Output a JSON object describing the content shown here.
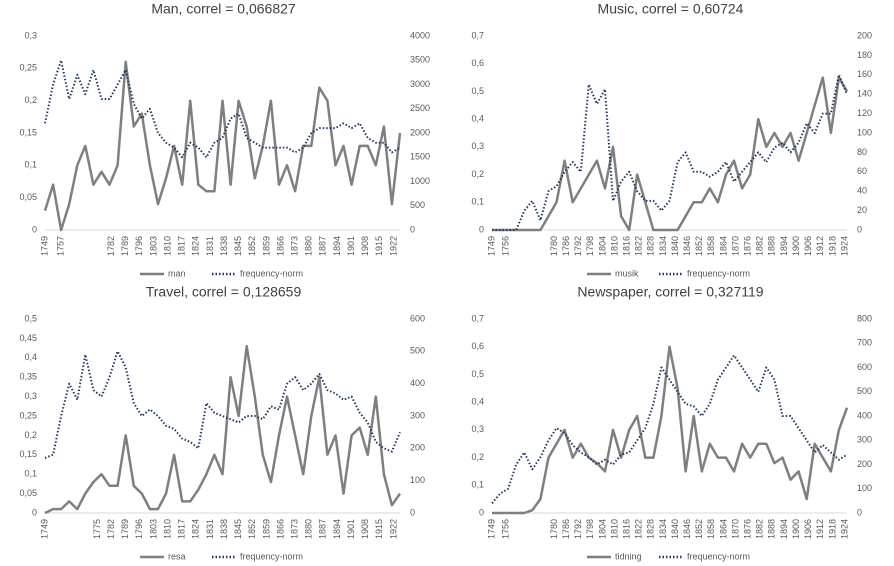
{
  "chart_data": [
    {
      "type": "line",
      "title": "Man, correl = 0,066827",
      "x": [
        1749,
        1753,
        1757,
        1761,
        1765,
        1769,
        1773,
        1777,
        1781,
        1785,
        1789,
        1793,
        1797,
        1801,
        1805,
        1809,
        1813,
        1817,
        1821,
        1825,
        1829,
        1833,
        1837,
        1841,
        1845,
        1849,
        1853,
        1857,
        1861,
        1865,
        1869,
        1873,
        1877,
        1881,
        1885,
        1889,
        1893,
        1897,
        1901,
        1905,
        1909,
        1913,
        1917,
        1921,
        1925
      ],
      "xlim": [
        1749,
        1925
      ],
      "xticks": [
        1749,
        1757,
        1782,
        1789,
        1796,
        1803,
        1810,
        1817,
        1824,
        1831,
        1838,
        1845,
        1852,
        1859,
        1866,
        1873,
        1880,
        1887,
        1894,
        1901,
        1908,
        1915,
        1922
      ],
      "ylim": [
        0,
        0.3
      ],
      "yticks": [
        0,
        {
          "value": 0.05,
          "label": "0,05"
        },
        {
          "value": 0.1,
          "label": "0,1"
        },
        {
          "value": 0.15,
          "label": "0,15"
        },
        {
          "value": 0.2,
          "label": "0,2"
        },
        {
          "value": 0.25,
          "label": "0,25"
        },
        {
          "value": 0.3,
          "label": "0,3"
        }
      ],
      "y2lim": [
        0,
        4000
      ],
      "y2ticks": [
        0,
        500,
        1000,
        1500,
        2000,
        2500,
        3000,
        3500,
        4000
      ],
      "grid": false,
      "series": [
        {
          "name": "man",
          "color": "#7f7f7f",
          "values": [
            0.03,
            0.07,
            0.0,
            0.04,
            0.1,
            0.13,
            0.07,
            0.09,
            0.07,
            0.1,
            0.26,
            0.16,
            0.18,
            0.1,
            0.04,
            0.08,
            0.13,
            0.07,
            0.2,
            0.07,
            0.06,
            0.06,
            0.2,
            0.07,
            0.2,
            0.16,
            0.08,
            0.13,
            0.2,
            0.07,
            0.1,
            0.06,
            0.13,
            0.13,
            0.22,
            0.2,
            0.1,
            0.13,
            0.07,
            0.13,
            0.13,
            0.1,
            0.16,
            0.04,
            0.15
          ]
        },
        {
          "name": "frequency-norm",
          "color": "#1f3864",
          "axis": "y2",
          "values": [
            2200,
            3000,
            3500,
            2700,
            3200,
            2800,
            3300,
            2700,
            2700,
            3000,
            3300,
            2600,
            2300,
            2500,
            2000,
            1800,
            1700,
            1500,
            1800,
            1700,
            1500,
            1800,
            1900,
            2300,
            2400,
            1900,
            1800,
            1700,
            1700,
            1700,
            1700,
            1600,
            1700,
            2000,
            2100,
            2100,
            2100,
            2200,
            2100,
            2200,
            1900,
            1800,
            1800,
            1600,
            1700
          ]
        }
      ]
    },
    {
      "type": "line",
      "title": "Music, correl = 0,60724",
      "x": [
        1749,
        1753,
        1757,
        1761,
        1765,
        1769,
        1773,
        1777,
        1781,
        1785,
        1789,
        1793,
        1797,
        1801,
        1805,
        1809,
        1813,
        1817,
        1821,
        1825,
        1829,
        1833,
        1837,
        1841,
        1845,
        1849,
        1853,
        1857,
        1861,
        1865,
        1869,
        1873,
        1877,
        1881,
        1885,
        1889,
        1893,
        1897,
        1901,
        1905,
        1909,
        1913,
        1917,
        1921,
        1925
      ],
      "xlim": [
        1749,
        1925
      ],
      "xticks": [
        1749,
        1756,
        1780,
        1786,
        1792,
        1798,
        1804,
        1810,
        1816,
        1822,
        1828,
        1834,
        1840,
        1846,
        1852,
        1858,
        1864,
        1870,
        1876,
        1882,
        1888,
        1894,
        1900,
        1906,
        1912,
        1918,
        1924
      ],
      "ylim": [
        0,
        0.7
      ],
      "yticks": [
        0,
        {
          "value": 0.1,
          "label": "0,1"
        },
        {
          "value": 0.2,
          "label": "0,2"
        },
        {
          "value": 0.3,
          "label": "0,3"
        },
        {
          "value": 0.4,
          "label": "0,4"
        },
        {
          "value": 0.5,
          "label": "0,5"
        },
        {
          "value": 0.6,
          "label": "0,6"
        },
        {
          "value": 0.7,
          "label": "0,7"
        }
      ],
      "y2lim": [
        0,
        200
      ],
      "y2ticks": [
        0,
        20,
        40,
        60,
        80,
        100,
        120,
        140,
        160,
        180,
        200
      ],
      "grid": false,
      "series": [
        {
          "name": "musik",
          "color": "#7f7f7f",
          "values": [
            0,
            0,
            0,
            0,
            0,
            0,
            0,
            0.05,
            0.1,
            0.25,
            0.1,
            0.15,
            0.2,
            0.25,
            0.15,
            0.3,
            0.05,
            0,
            0.2,
            0.1,
            0,
            0,
            0,
            0,
            0.05,
            0.1,
            0.1,
            0.15,
            0.1,
            0.2,
            0.25,
            0.15,
            0.2,
            0.4,
            0.3,
            0.35,
            0.3,
            0.35,
            0.25,
            0.35,
            0.45,
            0.55,
            0.35,
            0.55,
            0.5
          ]
        },
        {
          "name": "frequency-norm",
          "color": "#1f3864",
          "axis": "y2",
          "values": [
            0,
            0,
            0,
            0,
            20,
            30,
            10,
            40,
            45,
            60,
            70,
            60,
            150,
            130,
            145,
            30,
            50,
            60,
            40,
            30,
            30,
            20,
            30,
            70,
            80,
            60,
            60,
            55,
            60,
            70,
            50,
            60,
            70,
            80,
            70,
            85,
            90,
            80,
            90,
            110,
            100,
            120,
            120,
            160,
            140
          ]
        }
      ]
    },
    {
      "type": "line",
      "title": "Travel, correl = 0,128659",
      "x": [
        1749,
        1753,
        1757,
        1761,
        1765,
        1769,
        1773,
        1777,
        1781,
        1785,
        1789,
        1793,
        1797,
        1801,
        1805,
        1809,
        1813,
        1817,
        1821,
        1825,
        1829,
        1833,
        1837,
        1841,
        1845,
        1849,
        1853,
        1857,
        1861,
        1865,
        1869,
        1873,
        1877,
        1881,
        1885,
        1889,
        1893,
        1897,
        1901,
        1905,
        1909,
        1913,
        1917,
        1921,
        1925
      ],
      "xlim": [
        1749,
        1925
      ],
      "xticks": [
        1749,
        1775,
        1782,
        1789,
        1796,
        1803,
        1810,
        1817,
        1824,
        1831,
        1838,
        1845,
        1852,
        1859,
        1866,
        1873,
        1880,
        1887,
        1894,
        1901,
        1908,
        1915,
        1922
      ],
      "ylim": [
        0,
        0.5
      ],
      "yticks": [
        0,
        {
          "value": 0.05,
          "label": "0,05"
        },
        {
          "value": 0.1,
          "label": "0,1"
        },
        {
          "value": 0.15,
          "label": "0,15"
        },
        {
          "value": 0.2,
          "label": "0,2"
        },
        {
          "value": 0.25,
          "label": "0,25"
        },
        {
          "value": 0.3,
          "label": "0,3"
        },
        {
          "value": 0.35,
          "label": "0,35"
        },
        {
          "value": 0.4,
          "label": "0,4"
        },
        {
          "value": 0.45,
          "label": "0,45"
        },
        {
          "value": 0.5,
          "label": "0,5"
        }
      ],
      "y2lim": [
        0,
        600
      ],
      "y2ticks": [
        0,
        100,
        200,
        300,
        400,
        500,
        600
      ],
      "grid": false,
      "series": [
        {
          "name": "resa",
          "color": "#7f7f7f",
          "values": [
            0,
            0.01,
            0.01,
            0.03,
            0.01,
            0.05,
            0.08,
            0.1,
            0.07,
            0.07,
            0.2,
            0.07,
            0.05,
            0.01,
            0.01,
            0.05,
            0.15,
            0.03,
            0.03,
            0.06,
            0.1,
            0.15,
            0.1,
            0.35,
            0.25,
            0.43,
            0.3,
            0.15,
            0.08,
            0.2,
            0.3,
            0.2,
            0.1,
            0.25,
            0.35,
            0.15,
            0.2,
            0.05,
            0.2,
            0.22,
            0.15,
            0.3,
            0.1,
            0.02,
            0.05
          ]
        },
        {
          "name": "frequency-norm",
          "color": "#1f3864",
          "axis": "y2",
          "values": [
            170,
            180,
            300,
            400,
            350,
            490,
            380,
            360,
            420,
            500,
            450,
            340,
            300,
            320,
            300,
            270,
            260,
            230,
            220,
            200,
            340,
            310,
            300,
            290,
            280,
            300,
            300,
            290,
            330,
            320,
            400,
            420,
            380,
            400,
            430,
            380,
            370,
            350,
            360,
            310,
            280,
            220,
            200,
            190,
            250
          ]
        }
      ]
    },
    {
      "type": "line",
      "title": "Newspaper, correl = 0,327119",
      "x": [
        1749,
        1753,
        1757,
        1761,
        1765,
        1769,
        1773,
        1777,
        1781,
        1785,
        1789,
        1793,
        1797,
        1801,
        1805,
        1809,
        1813,
        1817,
        1821,
        1825,
        1829,
        1833,
        1837,
        1841,
        1845,
        1849,
        1853,
        1857,
        1861,
        1865,
        1869,
        1873,
        1877,
        1881,
        1885,
        1889,
        1893,
        1897,
        1901,
        1905,
        1909,
        1913,
        1917,
        1921,
        1925
      ],
      "xlim": [
        1749,
        1925
      ],
      "xticks": [
        1749,
        1756,
        1780,
        1786,
        1792,
        1798,
        1804,
        1810,
        1816,
        1822,
        1828,
        1834,
        1840,
        1846,
        1852,
        1858,
        1864,
        1870,
        1876,
        1882,
        1888,
        1894,
        1900,
        1906,
        1912,
        1918,
        1924
      ],
      "ylim": [
        0,
        0.7
      ],
      "yticks": [
        0,
        {
          "value": 0.1,
          "label": "0,1"
        },
        {
          "value": 0.2,
          "label": "0,2"
        },
        {
          "value": 0.3,
          "label": "0,3"
        },
        {
          "value": 0.4,
          "label": "0,4"
        },
        {
          "value": 0.5,
          "label": "0,5"
        },
        {
          "value": 0.6,
          "label": "0,6"
        },
        {
          "value": 0.7,
          "label": "0,7"
        }
      ],
      "y2lim": [
        0,
        800
      ],
      "y2ticks": [
        0,
        100,
        200,
        300,
        400,
        500,
        600,
        700,
        800
      ],
      "grid": false,
      "series": [
        {
          "name": "tidning",
          "color": "#7f7f7f",
          "values": [
            0,
            0,
            0,
            0,
            0,
            0.01,
            0.05,
            0.2,
            0.25,
            0.3,
            0.2,
            0.25,
            0.2,
            0.18,
            0.15,
            0.3,
            0.2,
            0.3,
            0.35,
            0.2,
            0.2,
            0.35,
            0.6,
            0.45,
            0.15,
            0.35,
            0.15,
            0.25,
            0.2,
            0.2,
            0.15,
            0.25,
            0.2,
            0.25,
            0.25,
            0.18,
            0.2,
            0.12,
            0.15,
            0.05,
            0.25,
            0.2,
            0.15,
            0.3,
            0.38
          ]
        },
        {
          "name": "frequency-norm",
          "color": "#1f3864",
          "axis": "y2",
          "values": [
            40,
            80,
            100,
            200,
            250,
            180,
            230,
            300,
            350,
            330,
            280,
            250,
            230,
            200,
            220,
            200,
            240,
            250,
            300,
            350,
            450,
            600,
            550,
            500,
            450,
            440,
            400,
            450,
            550,
            600,
            650,
            600,
            550,
            500,
            600,
            550,
            400,
            400,
            350,
            300,
            250,
            280,
            250,
            220,
            240
          ]
        }
      ]
    }
  ]
}
